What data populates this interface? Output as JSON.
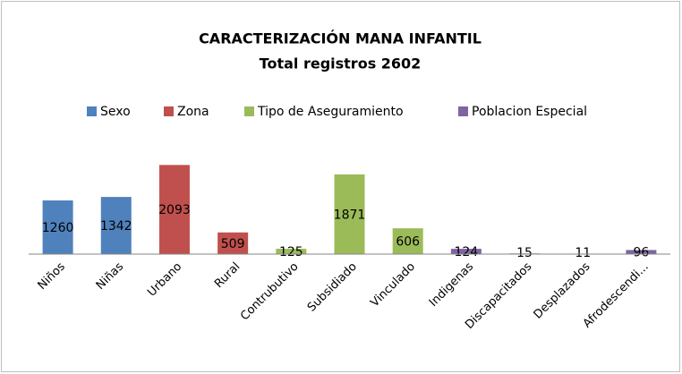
{
  "chart_data": {
    "type": "bar",
    "title": "CARACTERIZACIÓN MANA INFANTIL",
    "subtitle": "Total registros 2602",
    "categories": [
      "Niños",
      "Niñas",
      "Urbano",
      "Rural",
      "Contrubutivo",
      "Subsidiado",
      "Vinculado",
      "Indigenas",
      "Discapacitados",
      "Desplazados",
      "Afrodescendi..."
    ],
    "series": [
      {
        "name": "Sexo",
        "color": "#4f81bd",
        "values": [
          1260,
          1342,
          null,
          null,
          null,
          null,
          null,
          null,
          null,
          null,
          null
        ]
      },
      {
        "name": "Zona",
        "color": "#c0504d",
        "values": [
          null,
          null,
          2093,
          509,
          null,
          null,
          null,
          null,
          null,
          null,
          null
        ]
      },
      {
        "name": "Tipo de Aseguramiento",
        "color": "#9bbb59",
        "values": [
          null,
          null,
          null,
          null,
          125,
          1871,
          606,
          null,
          null,
          null,
          null
        ]
      },
      {
        "name": "Poblacion Especial",
        "color": "#8064a2",
        "values": [
          null,
          null,
          null,
          null,
          null,
          null,
          null,
          124,
          15,
          11,
          96
        ]
      }
    ],
    "ylim": [
      0,
      2500
    ],
    "legend": "top"
  }
}
